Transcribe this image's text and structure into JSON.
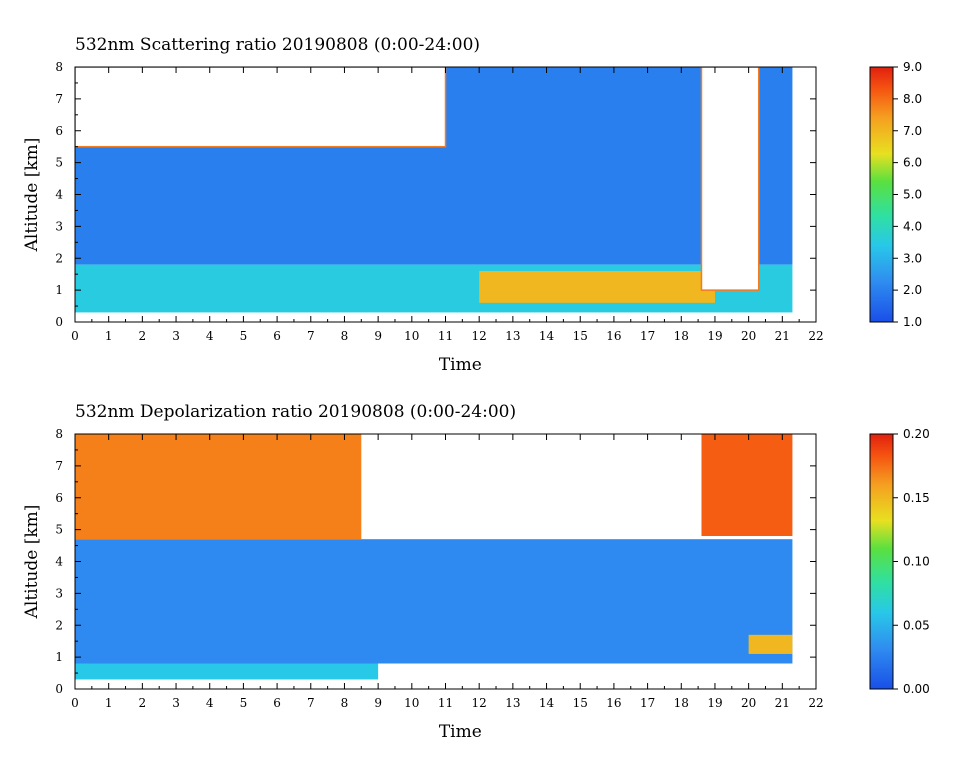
{
  "chart_data": [
    {
      "type": "heatmap",
      "title": "532nm Scattering ratio  20190808 (0:00-24:00)",
      "xlabel": "Time",
      "ylabel": "Altitude [km]",
      "xlim": [
        0,
        22
      ],
      "ylim": [
        0,
        8
      ],
      "x_ticks": [
        "0",
        "1",
        "2",
        "3",
        "4",
        "5",
        "6",
        "7",
        "8",
        "9",
        "10",
        "11",
        "12",
        "13",
        "14",
        "15",
        "16",
        "17",
        "18",
        "19",
        "20",
        "21",
        "22"
      ],
      "y_ticks": [
        "0",
        "1",
        "2",
        "3",
        "4",
        "5",
        "6",
        "7",
        "8"
      ],
      "colorbar": {
        "min": 1.0,
        "max": 9.0,
        "ticks": [
          "1.0",
          "2.0",
          "3.0",
          "4.0",
          "5.0",
          "6.0",
          "7.0",
          "8.0",
          "9.0"
        ]
      },
      "data_time_range": [
        0,
        21.3
      ],
      "features": [
        {
          "kind": "low-level layer",
          "t": [
            0,
            21.3
          ],
          "z": [
            0.3,
            1.8
          ],
          "value": 3.5
        },
        {
          "kind": "enhanced aerosol layer",
          "t": [
            12,
            19
          ],
          "z": [
            0.6,
            1.6
          ],
          "value": 7.0
        },
        {
          "kind": "cloud (saturated)",
          "t": [
            0,
            11
          ],
          "z": [
            5.5,
            8
          ],
          "value": 9.0
        },
        {
          "kind": "cloud (saturated)",
          "t": [
            18.6,
            20.3
          ],
          "z": [
            1,
            8
          ],
          "value": 9.0
        },
        {
          "kind": "background",
          "t": [
            0,
            21.3
          ],
          "z": [
            1.8,
            8
          ],
          "value": 2.0
        }
      ]
    },
    {
      "type": "heatmap",
      "title": "532nm Depolarization ratio  20190808 (0:00-24:00)",
      "xlabel": "Time",
      "ylabel": "Altitude [km]",
      "xlim": [
        0,
        22
      ],
      "ylim": [
        0,
        8
      ],
      "x_ticks": [
        "0",
        "1",
        "2",
        "3",
        "4",
        "5",
        "6",
        "7",
        "8",
        "9",
        "10",
        "11",
        "12",
        "13",
        "14",
        "15",
        "16",
        "17",
        "18",
        "19",
        "20",
        "21",
        "22"
      ],
      "y_ticks": [
        "0",
        "1",
        "2",
        "3",
        "4",
        "5",
        "6",
        "7",
        "8"
      ],
      "colorbar": {
        "min": 0.0,
        "max": 0.2,
        "ticks": [
          "0.00",
          "0.05",
          "0.10",
          "0.15",
          "0.20"
        ]
      },
      "data_time_range": [
        0,
        21.3
      ],
      "features": [
        {
          "kind": "low-level layer",
          "t": [
            0,
            9
          ],
          "z": [
            0.3,
            0.8
          ],
          "value": 0.06
        },
        {
          "kind": "ice cloud",
          "t": [
            0,
            8.5
          ],
          "z": [
            4.7,
            8
          ],
          "value": 0.17
        },
        {
          "kind": "ice cloud",
          "t": [
            18.6,
            21.3
          ],
          "z": [
            4.8,
            8
          ],
          "value": 0.18
        },
        {
          "kind": "aerosol layer",
          "t": [
            20,
            21.3
          ],
          "z": [
            1.1,
            1.7
          ],
          "value": 0.15
        },
        {
          "kind": "background",
          "t": [
            0,
            21.3
          ],
          "z": [
            0.8,
            4.7
          ],
          "value": 0.03
        }
      ]
    }
  ]
}
